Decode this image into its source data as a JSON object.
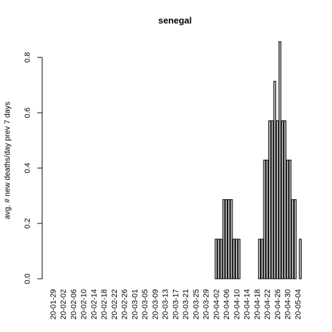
{
  "chart_data": {
    "type": "bar",
    "title": "senegal",
    "ylabel": "avg. # new deaths/day prev  7  days",
    "xlabel": "",
    "ylim": [
      0,
      0.86
    ],
    "yticks": [
      0.0,
      0.2,
      0.4,
      0.6,
      0.8
    ],
    "ytick_labels": [
      "0.0",
      "0.2",
      "0.4",
      "0.6",
      "0.8"
    ],
    "start_date": "2020-01-29",
    "xtick_labels": [
      "20-01-29",
      "20-02-02",
      "20-02-06",
      "20-02-10",
      "20-02-14",
      "20-02-18",
      "20-02-22",
      "20-02-26",
      "20-03-01",
      "20-03-05",
      "20-03-09",
      "20-03-13",
      "20-03-17",
      "20-03-21",
      "20-03-25",
      "20-03-29",
      "20-04-02",
      "20-04-06",
      "20-04-10",
      "20-04-14",
      "20-04-18",
      "20-04-22",
      "20-04-26",
      "20-04-30",
      "20-05-04"
    ],
    "values": [
      0,
      0,
      0,
      0,
      0,
      0,
      0,
      0,
      0,
      0,
      0,
      0,
      0,
      0,
      0,
      0,
      0,
      0,
      0,
      0,
      0,
      0,
      0,
      0,
      0,
      0,
      0,
      0,
      0,
      0,
      0,
      0,
      0,
      0,
      0,
      0,
      0,
      0,
      0,
      0,
      0,
      0,
      0,
      0,
      0,
      0,
      0,
      0,
      0,
      0,
      0,
      0,
      0,
      0,
      0,
      0,
      0,
      0,
      0,
      0,
      0,
      0,
      0,
      0,
      0.143,
      0.143,
      0.143,
      0.286,
      0.286,
      0.286,
      0.286,
      0.143,
      0.143,
      0.143,
      0,
      0,
      0,
      0,
      0,
      0,
      0,
      0.143,
      0.143,
      0.429,
      0.429,
      0.571,
      0.571,
      0.714,
      0.571,
      0.857,
      0.571,
      0.571,
      0.429,
      0.429,
      0.286,
      0.286,
      0,
      0.143
    ],
    "grid": false,
    "legend": "none"
  }
}
